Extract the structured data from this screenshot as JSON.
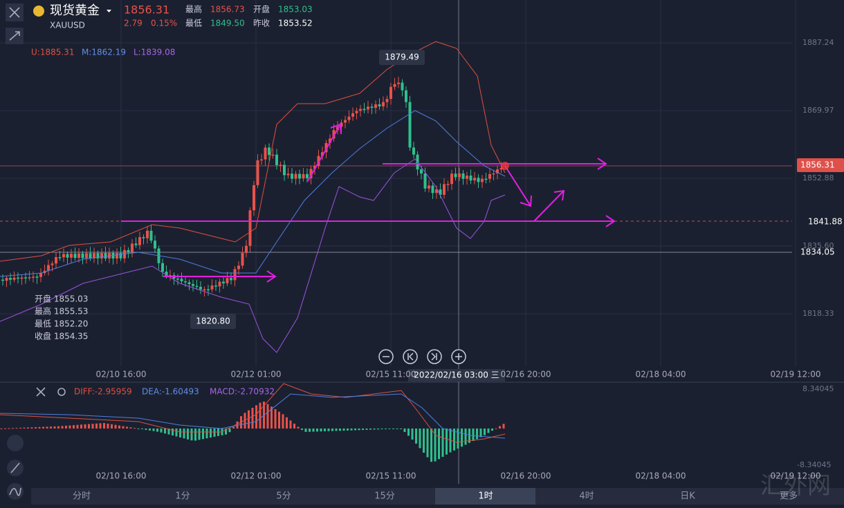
{
  "header": {
    "name": "现货黄金",
    "symbol": "XAUUSD",
    "price": "1856.31",
    "change": "2.79",
    "change_pct": "0.15%",
    "stats": [
      {
        "label": "最高",
        "value": "1856.73"
      },
      {
        "label": "开盘",
        "value": "1853.03"
      },
      {
        "label": "最低",
        "value": "1849.50"
      },
      {
        "label": "昨收",
        "value": "1853.52"
      }
    ]
  },
  "boll": {
    "upper": "U:1885.31",
    "middle": "M:1862.19",
    "lower": "L:1839.08"
  },
  "price_axis": [
    "1887.24",
    "1869.97",
    "1852.88",
    "1835.60",
    "1818.33"
  ],
  "price_badges": {
    "current": "1856.31",
    "line": "1841.88",
    "alert": "1834.05"
  },
  "annotations": {
    "high": "1879.49",
    "low": "1820.80"
  },
  "ohlc": [
    "开盘 1855.03",
    "最高 1855.53",
    "最低 1852.20",
    "收盘 1854.35"
  ],
  "time_axis": [
    "02/10 16:00",
    "02/12 01:00",
    "02/15 11:00",
    "02/16 20:00",
    "02/18 04:00",
    "02/19 12:00"
  ],
  "crosshair": "2022/02/16 03:00 三",
  "macd": {
    "diff": "DIFF:-2.95959",
    "dea": "DEA:-1.60493",
    "macd": "MACD:-2.70932",
    "max": "8.34045",
    "min": "-8.34045"
  },
  "tabs": [
    "分时",
    "1分",
    "5分",
    "15分",
    "1时",
    "4时",
    "日K",
    "更多"
  ],
  "watermark": "汇外网"
}
